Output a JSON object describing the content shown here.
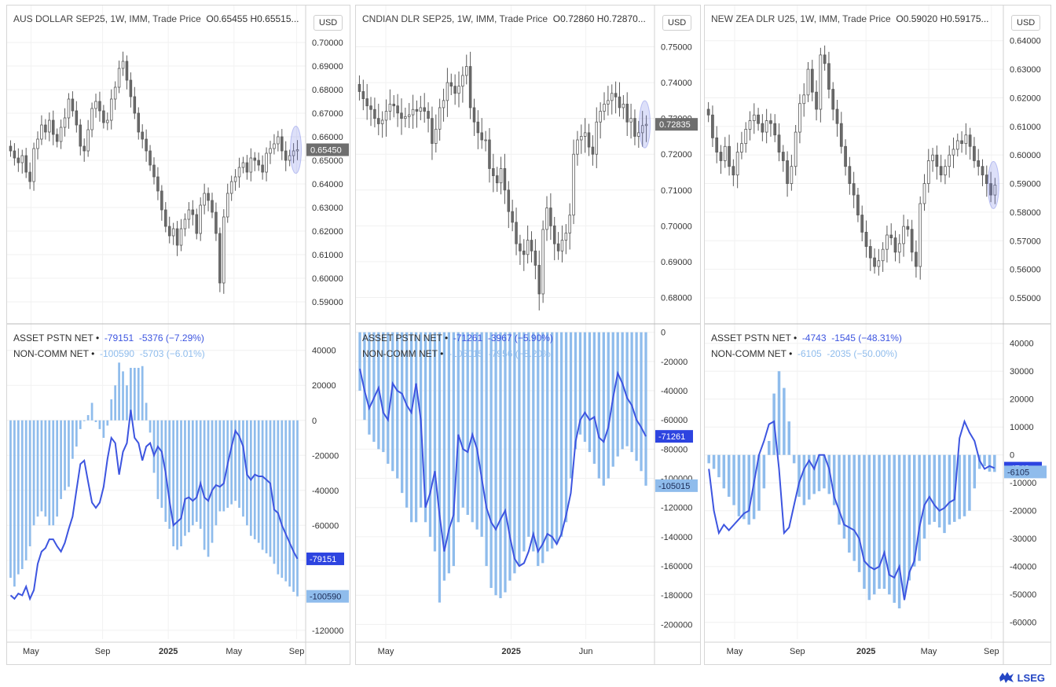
{
  "panels": [
    {
      "title": "AUS DOLLAR SEP25, 1W, IMM, Trade Price",
      "ohlc": "O0.65455  H0.65515...",
      "currency": "USD",
      "price_ticks": [
        "0.70000",
        "0.69000",
        "0.68000",
        "0.67000",
        "0.66000",
        "0.65000",
        "0.64000",
        "0.63000",
        "0.62000",
        "0.61000",
        "0.60000",
        "0.59000"
      ],
      "price_min": 0.585,
      "price_max": 0.705,
      "last_price": "0.65450",
      "last_price_val": 0.6545,
      "legend": [
        {
          "name": "ASSET PSTN NET",
          "v": "-79151",
          "chg": "-5376 (−7.29%)"
        },
        {
          "name": "NON-COMM NET",
          "v": "-100590",
          "chg": "-5703 (−6.01%)"
        }
      ],
      "ind_ticks": [
        "40000",
        "20000",
        "0",
        "-20000",
        "-40000",
        "-60000",
        "-80000",
        "-100000",
        "-120000"
      ],
      "ind_min": -125000,
      "ind_max": 52000,
      "ind_line_last": "-79151",
      "ind_line_last_val": -79151,
      "ind_bar_last": "-100590",
      "ind_bar_last_val": -100590,
      "time_labels": [
        {
          "t": "May",
          "f": 0.08
        },
        {
          "t": "Sep",
          "f": 0.32
        },
        {
          "t": "2025",
          "f": 0.54
        },
        {
          "t": "May",
          "f": 0.76
        },
        {
          "t": "Sep",
          "f": 0.97
        }
      ],
      "candles": [
        0.654,
        0.651,
        0.649,
        0.652,
        0.645,
        0.641,
        0.655,
        0.659,
        0.665,
        0.662,
        0.667,
        0.661,
        0.658,
        0.664,
        0.668,
        0.676,
        0.671,
        0.665,
        0.656,
        0.654,
        0.663,
        0.672,
        0.675,
        0.671,
        0.666,
        0.667,
        0.676,
        0.681,
        0.689,
        0.692,
        0.684,
        0.677,
        0.67,
        0.662,
        0.659,
        0.654,
        0.648,
        0.643,
        0.637,
        0.629,
        0.622,
        0.618,
        0.621,
        0.614,
        0.621,
        0.625,
        0.629,
        0.627,
        0.619,
        0.631,
        0.636,
        0.633,
        0.628,
        0.619,
        0.598,
        0.626,
        0.636,
        0.641,
        0.643,
        0.647,
        0.649,
        0.645,
        0.651,
        0.65,
        0.648,
        0.645,
        0.653,
        0.655,
        0.657,
        0.66,
        0.654,
        0.65,
        0.652,
        0.654,
        0.6545
      ],
      "line": [
        -100000,
        -102000,
        -99000,
        -100000,
        -95000,
        -102000,
        -97000,
        -82000,
        -75000,
        -73000,
        -68000,
        -68000,
        -72000,
        -75000,
        -70000,
        -62000,
        -55000,
        -40000,
        -25000,
        -23000,
        -35000,
        -47000,
        -50000,
        -47000,
        -38000,
        -22000,
        -10000,
        -13000,
        -31000,
        -18000,
        -13000,
        6000,
        -10000,
        -13000,
        -23000,
        -15000,
        -13000,
        -20000,
        -15000,
        -18000,
        -30000,
        -46000,
        -60000,
        -58000,
        -56000,
        -45000,
        -44000,
        -46000,
        -44000,
        -36000,
        -44000,
        -46000,
        -40000,
        -37000,
        -38000,
        -36000,
        -25000,
        -15000,
        -6000,
        -9000,
        -15000,
        -31000,
        -34000,
        -31000,
        -32000,
        -32000,
        -34000,
        -36000,
        -51000,
        -53000,
        -60000,
        -65000,
        -70000,
        -75000,
        -79151
      ],
      "bars": [
        -90000,
        -95000,
        -88000,
        -85000,
        -80000,
        -72000,
        -60000,
        -55000,
        -52000,
        -55000,
        -60000,
        -60000,
        -55000,
        -45000,
        -40000,
        -38000,
        -22000,
        -15000,
        -5000,
        0,
        3000,
        10000,
        -1000,
        -5000,
        -10000,
        -3000,
        12000,
        20000,
        33000,
        28000,
        20000,
        30000,
        30000,
        30000,
        31000,
        10000,
        -7000,
        -30000,
        -45000,
        -50000,
        -58000,
        -62000,
        -72000,
        -74000,
        -72000,
        -66000,
        -64000,
        -60000,
        -58000,
        -62000,
        -74000,
        -78000,
        -70000,
        -60000,
        -52000,
        -52000,
        -50000,
        -48000,
        -46000,
        -50000,
        -55000,
        -60000,
        -66000,
        -68000,
        -70000,
        -74000,
        -76000,
        -78000,
        -82000,
        -88000,
        -90000,
        -92000,
        -95000,
        -98000,
        -100590
      ]
    },
    {
      "title": "CNDIAN DLR SEP25, 1W, IMM, Trade Price",
      "ohlc": "O0.72860  H0.72870...",
      "currency": "USD",
      "price_ticks": [
        "0.75000",
        "0.74000",
        "0.73000",
        "0.72000",
        "0.71000",
        "0.70000",
        "0.69000",
        "0.68000"
      ],
      "price_min": 0.6755,
      "price_max": 0.7545,
      "last_price": "0.72835",
      "last_price_val": 0.72835,
      "legend": [
        {
          "name": "ASSET PSTN NET",
          "v": "-71261",
          "chg": "-3967 (−5.90%)"
        },
        {
          "name": "NON-COMM NET",
          "v": "-105015",
          "chg": "-7956 (−8.20%)"
        }
      ],
      "ind_ticks": [
        "0",
        "-20000",
        "-40000",
        "-60000",
        "-80000",
        "-100000",
        "-120000",
        "-140000",
        "-160000",
        "-180000",
        "-200000"
      ],
      "ind_min": -210000,
      "ind_max": 2000,
      "ind_line_last": "-71261",
      "ind_line_last_val": -71261,
      "ind_bar_last": "-105015",
      "ind_bar_last_val": -105015,
      "time_labels": [
        {
          "t": "May",
          "f": 0.1
        },
        {
          "t": "2025",
          "f": 0.52
        },
        {
          "t": "Jun",
          "f": 0.77
        }
      ],
      "candles": [
        0.7375,
        0.7355,
        0.7335,
        0.7325,
        0.73,
        0.7285,
        0.7295,
        0.732,
        0.734,
        0.7335,
        0.7315,
        0.73,
        0.7305,
        0.731,
        0.7325,
        0.732,
        0.733,
        0.732,
        0.73,
        0.723,
        0.727,
        0.733,
        0.735,
        0.74,
        0.739,
        0.737,
        0.739,
        0.742,
        0.7445,
        0.733,
        0.729,
        0.726,
        0.724,
        0.724,
        0.716,
        0.714,
        0.712,
        0.716,
        0.71,
        0.704,
        0.701,
        0.695,
        0.693,
        0.692,
        0.696,
        0.693,
        0.689,
        0.681,
        0.699,
        0.705,
        0.7,
        0.695,
        0.693,
        0.696,
        0.698,
        0.703,
        0.72,
        0.724,
        0.725,
        0.726,
        0.722,
        0.72,
        0.729,
        0.732,
        0.734,
        0.735,
        0.737,
        0.736,
        0.733,
        0.734,
        0.729,
        0.73,
        0.725,
        0.726,
        0.728,
        0.72835
      ],
      "line": [
        -25000,
        -40000,
        -52000,
        -45000,
        -38000,
        -55000,
        -60000,
        -35000,
        -40000,
        -42000,
        -50000,
        -55000,
        -35000,
        -60000,
        -120000,
        -110000,
        -95000,
        -125000,
        -150000,
        -135000,
        -125000,
        -70000,
        -80000,
        -82000,
        -70000,
        -80000,
        -100000,
        -120000,
        -130000,
        -135000,
        -128000,
        -122000,
        -140000,
        -155000,
        -160000,
        -158000,
        -150000,
        -138000,
        -150000,
        -145000,
        -138000,
        -140000,
        -145000,
        -138000,
        -125000,
        -110000,
        -75000,
        -60000,
        -55000,
        -60000,
        -58000,
        -72000,
        -75000,
        -65000,
        -45000,
        -28000,
        -35000,
        -45000,
        -50000,
        -60000,
        -65000,
        -71261
      ],
      "bars": [
        -40000,
        -60000,
        -70000,
        -75000,
        -80000,
        -82000,
        -90000,
        -95000,
        -100000,
        -110000,
        -120000,
        -130000,
        -130000,
        -120000,
        -130000,
        -140000,
        -150000,
        -185000,
        -170000,
        -165000,
        -160000,
        -130000,
        -120000,
        -125000,
        -130000,
        -135000,
        -140000,
        -160000,
        -175000,
        -180000,
        -182000,
        -178000,
        -170000,
        -165000,
        -160000,
        -150000,
        -140000,
        -150000,
        -160000,
        -158000,
        -150000,
        -148000,
        -145000,
        -140000,
        -130000,
        -100000,
        -80000,
        -70000,
        -75000,
        -82000,
        -90000,
        -100000,
        -105000,
        -100000,
        -92000,
        -85000,
        -80000,
        -78000,
        -82000,
        -88000,
        -95000,
        -105015
      ]
    },
    {
      "title": "NEW ZEA DLR U25, 1W, IMM, Trade Price",
      "ohlc": "O0.59020  H0.59175...",
      "currency": "USD",
      "price_ticks": [
        "0.64000",
        "0.63000",
        "0.62000",
        "0.61000",
        "0.60000",
        "0.59000",
        "0.58000",
        "0.57000",
        "0.56000",
        "0.55000"
      ],
      "price_min": 0.5445,
      "price_max": 0.6435,
      "last_price": "",
      "last_price_val": 0.5895,
      "legend": [
        {
          "name": "ASSET PSTN NET",
          "v": "-4743",
          "chg": "-1545 (−48.31%)"
        },
        {
          "name": "NON-COMM NET",
          "v": "-6105",
          "chg": "-2035 (−50.00%)"
        }
      ],
      "ind_ticks": [
        "40000",
        "30000",
        "20000",
        "10000",
        "0",
        "-10000",
        "-20000",
        "-30000",
        "-40000",
        "-50000",
        "-60000"
      ],
      "ind_min": -66000,
      "ind_max": 45000,
      "ind_line_last": "-4743",
      "ind_line_last_val": -4743,
      "ind_bar_last": "-6105",
      "ind_bar_last_val": -6105,
      "time_labels": [
        {
          "t": "May",
          "f": 0.1
        },
        {
          "t": "Sep",
          "f": 0.31
        },
        {
          "t": "2025",
          "f": 0.54
        },
        {
          "t": "May",
          "f": 0.75
        },
        {
          "t": "Sep",
          "f": 0.96
        }
      ],
      "candles": [
        0.614,
        0.606,
        0.601,
        0.598,
        0.603,
        0.596,
        0.593,
        0.601,
        0.604,
        0.609,
        0.612,
        0.614,
        0.611,
        0.608,
        0.612,
        0.611,
        0.607,
        0.601,
        0.598,
        0.59,
        0.596,
        0.608,
        0.618,
        0.621,
        0.63,
        0.622,
        0.616,
        0.635,
        0.632,
        0.623,
        0.616,
        0.611,
        0.603,
        0.596,
        0.59,
        0.586,
        0.579,
        0.573,
        0.568,
        0.564,
        0.561,
        0.563,
        0.567,
        0.572,
        0.571,
        0.566,
        0.569,
        0.575,
        0.574,
        0.566,
        0.561,
        0.583,
        0.59,
        0.598,
        0.6,
        0.596,
        0.593,
        0.596,
        0.6,
        0.602,
        0.605,
        0.604,
        0.607,
        0.603,
        0.598,
        0.596,
        0.593,
        0.59,
        0.586,
        0.5895
      ],
      "line": [
        -5000,
        -20000,
        -28000,
        -25000,
        -27000,
        -25000,
        -23000,
        -21000,
        -20000,
        -10000,
        0,
        5000,
        11000,
        12000,
        -5000,
        -28000,
        -26000,
        -18000,
        -10000,
        -5000,
        -2000,
        -5000,
        0,
        0,
        -5000,
        -15000,
        -20000,
        -25000,
        -26000,
        -27000,
        -30000,
        -38000,
        -40000,
        -41000,
        -40000,
        -35000,
        -43000,
        -44000,
        -40000,
        -52000,
        -42000,
        -38000,
        -26000,
        -18000,
        -15000,
        -18000,
        -20000,
        -19000,
        -17000,
        -16000,
        6000,
        12000,
        8000,
        5000,
        -2000,
        -5000,
        -4000,
        -4743
      ],
      "bars": [
        -3000,
        -5000,
        -8000,
        -12000,
        -15000,
        -18000,
        -22000,
        -23000,
        -25000,
        -23000,
        -20000,
        -12000,
        5000,
        22000,
        30000,
        24000,
        12000,
        -3000,
        -15000,
        -18000,
        -16000,
        -14000,
        -13000,
        -12000,
        -14000,
        -18000,
        -25000,
        -30000,
        -35000,
        -38000,
        -42000,
        -48000,
        -52000,
        -50000,
        -48000,
        -48000,
        -50000,
        -53000,
        -55000,
        -50000,
        -45000,
        -40000,
        -38000,
        -30000,
        -25000,
        -24000,
        -26000,
        -28000,
        -25000,
        -24000,
        -23000,
        -22000,
        -20000,
        -12000,
        -5000,
        -4000,
        -6000,
        -6105
      ]
    }
  ],
  "logo_text": "LSEG"
}
